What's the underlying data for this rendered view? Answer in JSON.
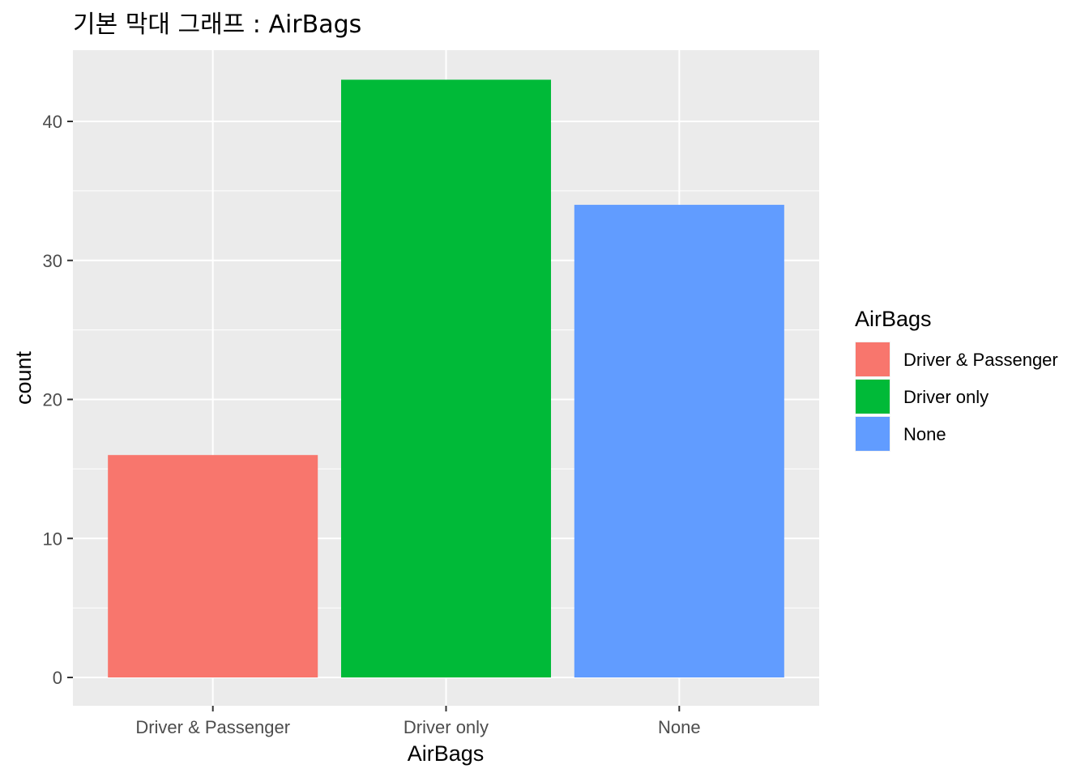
{
  "chart_data": {
    "type": "bar",
    "title": "기본 막대 그래프 : AirBags",
    "xlabel": "AirBags",
    "ylabel": "count",
    "categories": [
      "Driver & Passenger",
      "Driver only",
      "None"
    ],
    "values": [
      16,
      43,
      34
    ],
    "colors": [
      "#F8766D",
      "#00BA38",
      "#619CFF"
    ],
    "ylim": [
      0,
      45
    ],
    "yticks": [
      0,
      10,
      20,
      30,
      40
    ],
    "grid": true,
    "panel_background": "#EBEBEB",
    "legend": {
      "title": "AirBags",
      "position": "right",
      "entries": [
        "Driver & Passenger",
        "Driver only",
        "None"
      ]
    }
  }
}
